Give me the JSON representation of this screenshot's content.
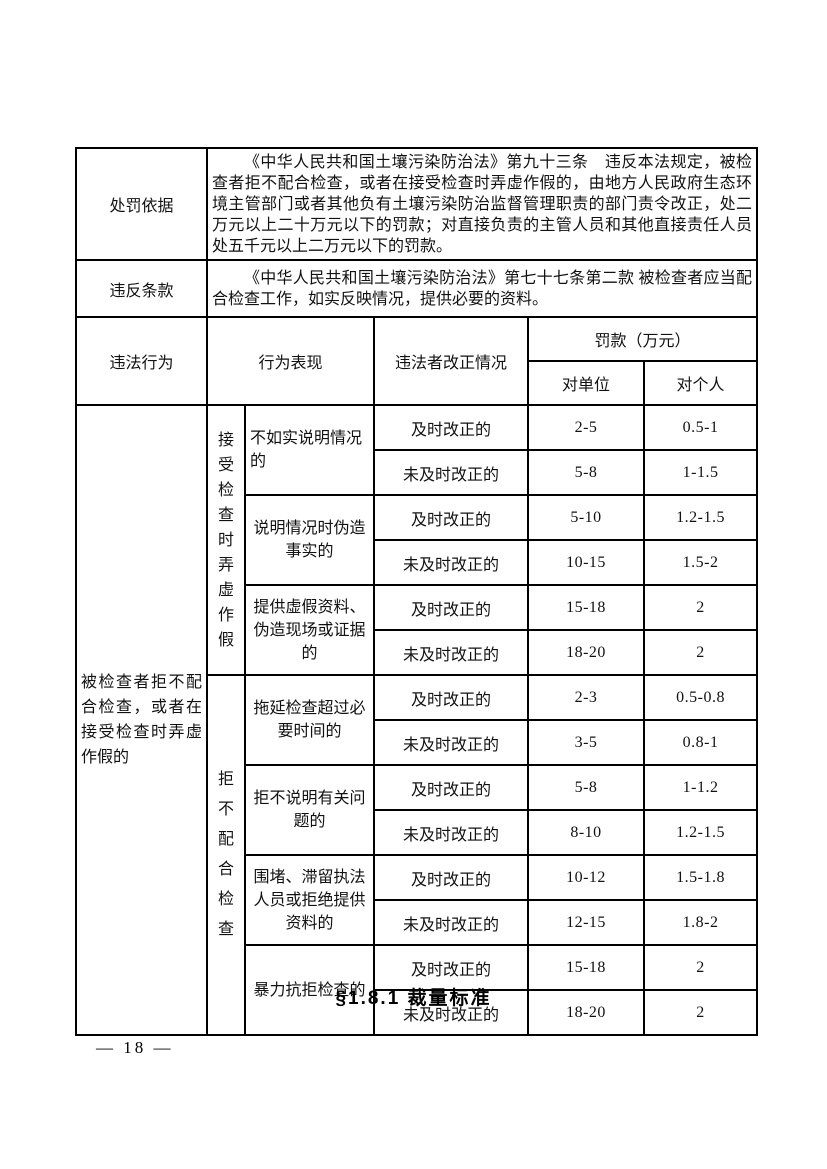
{
  "page": {
    "section_heading": "§1.8.1 裁量标准",
    "page_number": "— 18 —"
  },
  "table": {
    "penalty_basis": {
      "label": "处罚依据",
      "content": "《中华人民共和国土壤污染防治法》第九十三条　违反本法规定，被检查者拒不配合检查，或者在接受检查时弄虚作假的，由地方人民政府生态环境主管部门或者其他负有土壤污染防治监督管理职责的部门责令改正，处二万元以上二十万元以下的罚款；对直接负责的主管人员和其他直接责任人员处五千元以上二万元以下的罚款。"
    },
    "violated_clause": {
      "label": "违反条款",
      "content": "《中华人民共和国土壤污染防治法》第七十七条第二款 被检查者应当配合检查工作，如实反映情况，提供必要的资料。"
    },
    "headers": {
      "illegal_act": "违法行为",
      "behavior": "行为表现",
      "correction_status": "违法者改正情况",
      "fine": "罚款（万元）",
      "fine_unit": "对单位",
      "fine_individual": "对个人"
    },
    "illegal_act": "被检查者拒不配合检查，或者在接受检查时弄虚作假的",
    "categories": [
      {
        "name": "接受检查时弄虚作假",
        "behaviors": [
          {
            "desc": "不如实说明情况的",
            "rows": [
              {
                "correction": "及时改正的",
                "unit": "2-5",
                "individual": "0.5-1"
              },
              {
                "correction": "未及时改正的",
                "unit": "5-8",
                "individual": "1-1.5"
              }
            ]
          },
          {
            "desc": "说明情况时伪造事实的",
            "rows": [
              {
                "correction": "及时改正的",
                "unit": "5-10",
                "individual": "1.2-1.5"
              },
              {
                "correction": "未及时改正的",
                "unit": "10-15",
                "individual": "1.5-2"
              }
            ]
          },
          {
            "desc": "提供虚假资料、伪造现场或证据的",
            "rows": [
              {
                "correction": "及时改正的",
                "unit": "15-18",
                "individual": "2"
              },
              {
                "correction": "未及时改正的",
                "unit": "18-20",
                "individual": "2"
              }
            ]
          }
        ]
      },
      {
        "name": "拒不配合检查",
        "behaviors": [
          {
            "desc": "拖延检查超过必要时间的",
            "rows": [
              {
                "correction": "及时改正的",
                "unit": "2-3",
                "individual": "0.5-0.8"
              },
              {
                "correction": "未及时改正的",
                "unit": "3-5",
                "individual": "0.8-1"
              }
            ]
          },
          {
            "desc": "拒不说明有关问题的",
            "rows": [
              {
                "correction": "及时改正的",
                "unit": "5-8",
                "individual": "1-1.2"
              },
              {
                "correction": "未及时改正的",
                "unit": "8-10",
                "individual": "1.2-1.5"
              }
            ]
          },
          {
            "desc": "围堵、滞留执法人员或拒绝提供资料的",
            "rows": [
              {
                "correction": "及时改正的",
                "unit": "10-12",
                "individual": "1.5-1.8"
              },
              {
                "correction": "未及时改正的",
                "unit": "12-15",
                "individual": "1.8-2"
              }
            ]
          },
          {
            "desc": "暴力抗拒检查的",
            "rows": [
              {
                "correction": "及时改正的",
                "unit": "15-18",
                "individual": "2"
              },
              {
                "correction": "未及时改正的",
                "unit": "18-20",
                "individual": "2"
              }
            ]
          }
        ]
      }
    ]
  }
}
